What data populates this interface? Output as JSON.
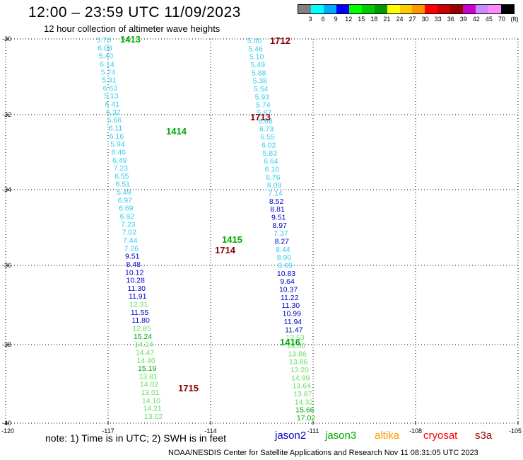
{
  "header": {
    "title": "12:00 – 23:59 UTC 11/09/2023",
    "subtitle": "12 hour collection of altimeter wave heights"
  },
  "colorbar": {
    "colors": [
      "#808080",
      "#00ffff",
      "#00aaff",
      "#0000ff",
      "#00ff00",
      "#00cc00",
      "#009900",
      "#ffff00",
      "#ffcc00",
      "#ff9900",
      "#ff0000",
      "#cc0000",
      "#990000",
      "#cc00cc",
      "#cc88ff",
      "#ff88ff",
      "#000000"
    ],
    "labels": [
      "3",
      "6",
      "9",
      "12",
      "15",
      "18",
      "21",
      "24",
      "27",
      "30",
      "33",
      "36",
      "39",
      "42",
      "45",
      "70",
      "(ft)"
    ]
  },
  "axes": {
    "y_ticks": [
      "-30",
      "-32",
      "-34",
      "-36",
      "-38",
      "-40"
    ],
    "x_ticks": [
      "-120",
      "-117",
      "-114",
      "-111",
      "-108",
      "-105"
    ]
  },
  "color_classes": {
    "cyan": "#33ccee",
    "blue": "#0000cc",
    "lightgreen": "#66dd66",
    "green": "#00aa00",
    "darkred": "#880000"
  },
  "passes": [
    {
      "id": "1413",
      "color": "green"
    },
    {
      "id": "1414",
      "color": "green"
    },
    {
      "id": "1415",
      "color": "green"
    },
    {
      "id": "1416",
      "color": "green"
    },
    {
      "id": "1712",
      "color": "darkred"
    },
    {
      "id": "1713",
      "color": "darkred"
    },
    {
      "id": "1714",
      "color": "darkred"
    },
    {
      "id": "1715",
      "color": "darkred"
    }
  ],
  "track_descending": [
    {
      "v": "5.76",
      "c": "cyan"
    },
    {
      "v": "6.08",
      "c": "cyan"
    },
    {
      "v": "5.40",
      "c": "cyan"
    },
    {
      "v": "6.14",
      "c": "cyan"
    },
    {
      "v": "5.74",
      "c": "cyan"
    },
    {
      "v": "5.31",
      "c": "cyan"
    },
    {
      "v": "6.63",
      "c": "cyan"
    },
    {
      "v": "5.13",
      "c": "cyan"
    },
    {
      "v": "6.41",
      "c": "cyan"
    },
    {
      "v": "6.32",
      "c": "cyan"
    },
    {
      "v": "5.66",
      "c": "cyan"
    },
    {
      "v": "6.11",
      "c": "cyan"
    },
    {
      "v": "6.16",
      "c": "cyan"
    },
    {
      "v": "5.94",
      "c": "cyan"
    },
    {
      "v": "6.46",
      "c": "cyan"
    },
    {
      "v": "6.49",
      "c": "cyan"
    },
    {
      "v": "7.23",
      "c": "cyan"
    },
    {
      "v": "6.55",
      "c": "cyan"
    },
    {
      "v": "6.51",
      "c": "cyan"
    },
    {
      "v": "5.49",
      "c": "cyan"
    },
    {
      "v": "6.97",
      "c": "cyan"
    },
    {
      "v": "6.69",
      "c": "cyan"
    },
    {
      "v": "6.92",
      "c": "cyan"
    },
    {
      "v": "7.23",
      "c": "cyan"
    },
    {
      "v": "7.02",
      "c": "cyan"
    },
    {
      "v": "7.44",
      "c": "cyan"
    },
    {
      "v": "7.26",
      "c": "cyan"
    },
    {
      "v": "9.51",
      "c": "blue"
    },
    {
      "v": "8.48",
      "c": "blue"
    },
    {
      "v": "10.12",
      "c": "blue"
    },
    {
      "v": "10.28",
      "c": "blue"
    },
    {
      "v": "11.30",
      "c": "blue"
    },
    {
      "v": "11.91",
      "c": "blue"
    },
    {
      "v": "12.31",
      "c": "lightgreen"
    },
    {
      "v": "11.55",
      "c": "blue"
    },
    {
      "v": "11.80",
      "c": "blue"
    },
    {
      "v": "12.85",
      "c": "lightgreen"
    },
    {
      "v": "15.24",
      "c": "green"
    },
    {
      "v": "14.24",
      "c": "lightgreen"
    },
    {
      "v": "14.47",
      "c": "lightgreen"
    },
    {
      "v": "14.40",
      "c": "lightgreen"
    },
    {
      "v": "15.19",
      "c": "green"
    },
    {
      "v": "13.81",
      "c": "lightgreen"
    },
    {
      "v": "14.02",
      "c": "lightgreen"
    },
    {
      "v": "13.01",
      "c": "lightgreen"
    },
    {
      "v": "14.10",
      "c": "lightgreen"
    },
    {
      "v": "14.21",
      "c": "lightgreen"
    },
    {
      "v": "13.02",
      "c": "lightgreen"
    }
  ],
  "track_ascending": [
    {
      "v": "5.40",
      "c": "cyan"
    },
    {
      "v": "5.46",
      "c": "cyan"
    },
    {
      "v": "5.10",
      "c": "cyan"
    },
    {
      "v": "5.49",
      "c": "cyan"
    },
    {
      "v": "5.88",
      "c": "cyan"
    },
    {
      "v": "5.38",
      "c": "cyan"
    },
    {
      "v": "5.54",
      "c": "cyan"
    },
    {
      "v": "5.93",
      "c": "cyan"
    },
    {
      "v": "5.74",
      "c": "cyan"
    },
    {
      "v": "5.87",
      "c": "cyan"
    },
    {
      "v": "6.68",
      "c": "cyan"
    },
    {
      "v": "6.73",
      "c": "cyan"
    },
    {
      "v": "6.55",
      "c": "cyan"
    },
    {
      "v": "6.02",
      "c": "cyan"
    },
    {
      "v": "5.83",
      "c": "cyan"
    },
    {
      "v": "6.64",
      "c": "cyan"
    },
    {
      "v": "6.10",
      "c": "cyan"
    },
    {
      "v": "6.76",
      "c": "cyan"
    },
    {
      "v": "8.09",
      "c": "cyan"
    },
    {
      "v": "7.14",
      "c": "cyan"
    },
    {
      "v": "8.52",
      "c": "blue"
    },
    {
      "v": "8.81",
      "c": "blue"
    },
    {
      "v": "9.51",
      "c": "blue"
    },
    {
      "v": "8.97",
      "c": "blue"
    },
    {
      "v": "7.37",
      "c": "cyan"
    },
    {
      "v": "8.27",
      "c": "blue"
    },
    {
      "v": "8.44",
      "c": "cyan"
    },
    {
      "v": "8.90",
      "c": "cyan"
    },
    {
      "v": "8.69",
      "c": "cyan"
    },
    {
      "v": "10.83",
      "c": "blue"
    },
    {
      "v": "9.64",
      "c": "blue"
    },
    {
      "v": "10.37",
      "c": "blue"
    },
    {
      "v": "11.22",
      "c": "blue"
    },
    {
      "v": "11.30",
      "c": "blue"
    },
    {
      "v": "10.99",
      "c": "blue"
    },
    {
      "v": "11.94",
      "c": "blue"
    },
    {
      "v": "11.47",
      "c": "blue"
    },
    {
      "v": "12.53",
      "c": "lightgreen"
    },
    {
      "v": "14.00",
      "c": "lightgreen"
    },
    {
      "v": "13.86",
      "c": "lightgreen"
    },
    {
      "v": "13.86",
      "c": "lightgreen"
    },
    {
      "v": "13.20",
      "c": "lightgreen"
    },
    {
      "v": "14.99",
      "c": "lightgreen"
    },
    {
      "v": "13.64",
      "c": "lightgreen"
    },
    {
      "v": "13.87",
      "c": "lightgreen"
    },
    {
      "v": "14.32",
      "c": "lightgreen"
    },
    {
      "v": "15.66",
      "c": "green"
    },
    {
      "v": "17.02",
      "c": "green"
    }
  ],
  "footer": {
    "note": "note:  1) Time is in UTC;  2) SWH is in feet",
    "satellites": [
      {
        "name": "jason2",
        "color": "#0000cc"
      },
      {
        "name": "jason3",
        "color": "#00aa00"
      },
      {
        "name": "altika",
        "color": "#ff9900"
      },
      {
        "name": "cryosat",
        "color": "#ff0000"
      },
      {
        "name": "s3a",
        "color": "#990000"
      }
    ],
    "credit": "NOAA/NESDIS Center for Satellite Applications and Research    Nov 11 08:31:05 UTC 2023"
  }
}
